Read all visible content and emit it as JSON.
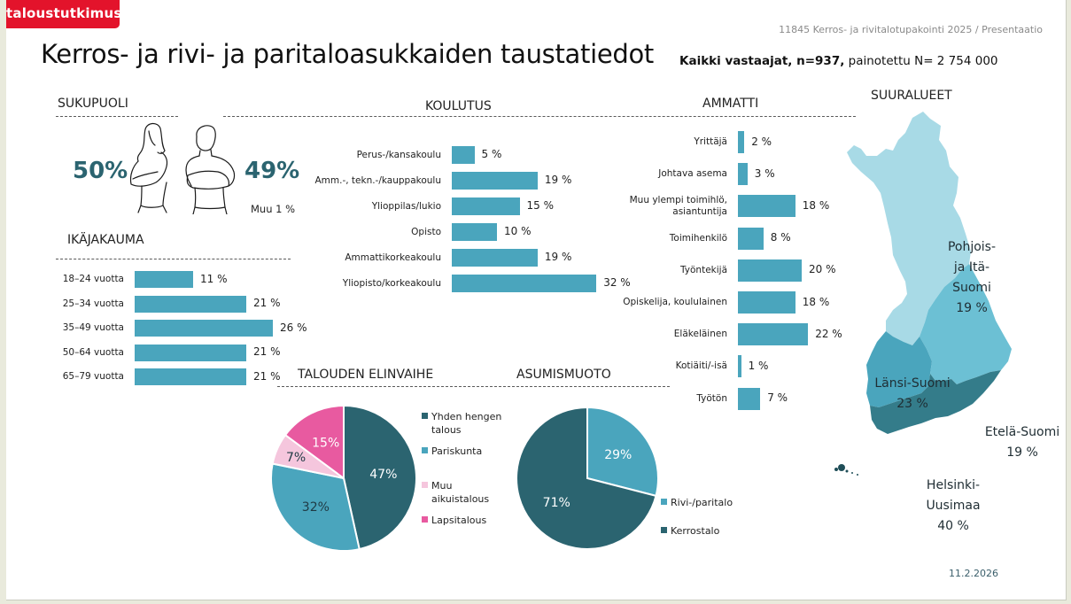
{
  "header": {
    "logo_text": "taloustutkimus",
    "project": "11845 Kerros- ja rivitalotupakointi 2025 / Presentaatio",
    "title": "Kerros- ja rivi- ja paritaloasukkaiden taustatiedot",
    "subtitle_bold": "Kaikki vastaajat, n=937,",
    "subtitle_rest": " painotettu N= 2 754 000"
  },
  "colors": {
    "brand_red": "#e3132b",
    "bar": "#4aa5bd",
    "dark_teal": "#2b6470",
    "light_pink": "#f5c6dd",
    "pink": "#e85aa0",
    "map_north_east": "#a8dae6",
    "map_south": "#6cc0d4",
    "map_west": "#4aa5bd",
    "map_helsinki": "#347c8a"
  },
  "sukupuoli": {
    "title": "SUKUPUOLI",
    "female": "50%",
    "male": "49%",
    "other": "Muu 1 %",
    "icons": [
      "woman-icon",
      "man-icon"
    ]
  },
  "footer": {
    "date": "11.2.2026"
  },
  "chart_data": [
    {
      "type": "bar",
      "orientation": "horizontal",
      "title": "IKÄJAKAUMA",
      "categories": [
        "18–24 vuotta",
        "25–34 vuotta",
        "35–49 vuotta",
        "50–64 vuotta",
        "65–79 vuotta"
      ],
      "values": [
        11,
        21,
        26,
        21,
        21
      ],
      "labels": [
        "11 %",
        "21 %",
        "26 %",
        "21 %",
        "21 %"
      ],
      "unit": "%"
    },
    {
      "type": "bar",
      "orientation": "horizontal",
      "title": "KOULUTUS",
      "categories": [
        "Perus-/kansakoulu",
        "Amm.-, tekn.-/kauppakoulu",
        "Ylioppilas/lukio",
        "Opisto",
        "Ammattikorkeakoulu",
        "Yliopisto/korkeakoulu"
      ],
      "values": [
        5,
        19,
        15,
        10,
        19,
        32
      ],
      "labels": [
        "5 %",
        "19 %",
        "15 %",
        "10 %",
        "19 %",
        "32 %"
      ],
      "unit": "%"
    },
    {
      "type": "bar",
      "orientation": "horizontal",
      "title": "AMMATTI",
      "categories": [
        "Yrittäjä",
        "Johtava asema",
        "Muu ylempi toimihlö,|asiantuntija",
        "Toimihenkilö",
        "Työntekijä",
        "Opiskelija, koululainen",
        "Eläkeläinen",
        "Kotiäiti/-isä",
        "Työtön"
      ],
      "values": [
        2,
        3,
        18,
        8,
        20,
        18,
        22,
        1,
        7
      ],
      "labels": [
        "2 %",
        "3 %",
        "18 %",
        "8 %",
        "20 %",
        "18 %",
        "22 %",
        "1 %",
        "7 %"
      ],
      "unit": "%"
    },
    {
      "type": "pie",
      "title": "TALOUDEN ELINVAIHE",
      "categories": [
        "Yhden hengen talous",
        "Pariskunta",
        "Muu aikuistalous",
        "Lapsitalous"
      ],
      "legend_lines": [
        [
          "Yhden hengen",
          "talous"
        ],
        [
          "Pariskunta"
        ],
        [
          "Muu",
          "aikuistalous"
        ],
        [
          "Lapsitalous"
        ]
      ],
      "values": [
        47,
        32,
        7,
        15
      ],
      "labels": [
        "47%",
        "32%",
        "7%",
        "15%"
      ],
      "colors": [
        "#2b6470",
        "#4aa5bd",
        "#f5c6dd",
        "#e85aa0"
      ],
      "label_colors": [
        "#ffffff",
        "#1f3a44",
        "#1f3a44",
        "#ffffff"
      ],
      "legend": "right"
    },
    {
      "type": "pie",
      "title": "ASUMISMUOTO",
      "categories": [
        "Rivi-/paritalo",
        "Kerrostalo"
      ],
      "values": [
        29,
        71
      ],
      "labels": [
        "29%",
        "71%"
      ],
      "colors": [
        "#4aa5bd",
        "#2b6470"
      ],
      "label_colors": [
        "#ffffff",
        "#ffffff"
      ],
      "legend": "right"
    },
    {
      "type": "table",
      "title": "SUURALUEET",
      "categories": [
        "Pohjois- ja Itä-Suomi",
        "Länsi-Suomi",
        "Etelä-Suomi",
        "Helsinki-Uusimaa"
      ],
      "label_lines": [
        [
          "Pohjois-",
          "ja Itä-",
          "Suomi",
          "19 %"
        ],
        [
          "Länsi-Suomi",
          "23 %"
        ],
        [
          "Etelä-Suomi",
          "19 %"
        ],
        [
          "Helsinki-",
          "Uusimaa",
          "40 %"
        ]
      ],
      "values": [
        19,
        23,
        19,
        40
      ],
      "unit": "%"
    }
  ]
}
